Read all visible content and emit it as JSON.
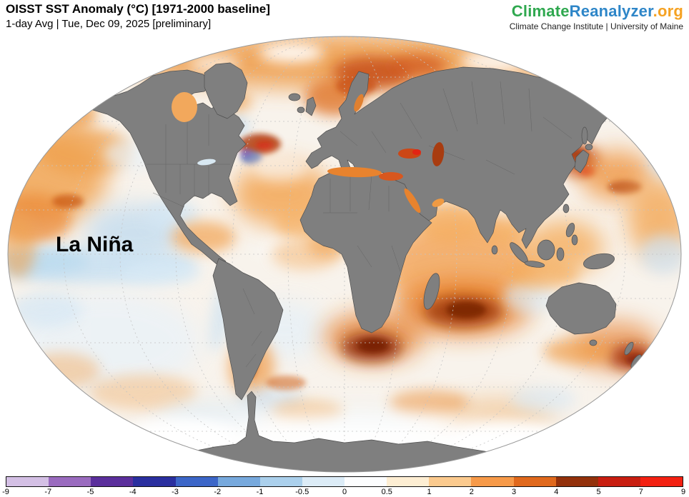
{
  "header": {
    "title": "OISST SST Anomaly (°C) [1971-2000 baseline]",
    "subtitle": "1-day Avg | Tue, Dec 09, 2025 [preliminary]"
  },
  "logo": {
    "part1": "Climate",
    "part2": "Reanalyzer",
    "part3": ".org",
    "colors": {
      "climate": "#2fa84f",
      "reanalyzer": "#2e86c8",
      "org": "#f5a223"
    },
    "tagline": "Climate Change Institute | University of Maine"
  },
  "map": {
    "annotation": "La Niña",
    "land_color": "#7f7f7f",
    "ocean_base": "#f8f3ec"
  },
  "colorbar": {
    "units": "°C",
    "ticks": [
      "-9",
      "-7",
      "-5",
      "-4",
      "-3",
      "-2",
      "-1",
      "-0.5",
      "0",
      "0.5",
      "1",
      "2",
      "3",
      "4",
      "5",
      "7",
      "9"
    ],
    "segments": [
      "#d4c0e5",
      "#9a6bbf",
      "#5b2f9c",
      "#2a2f9f",
      "#3c66c8",
      "#77a9dd",
      "#abd0ec",
      "#dcecf7",
      "#fcfdfe",
      "#fdeed3",
      "#fbca8e",
      "#f79a49",
      "#e0691d",
      "#93310b",
      "#c81e10",
      "#f32112"
    ]
  }
}
